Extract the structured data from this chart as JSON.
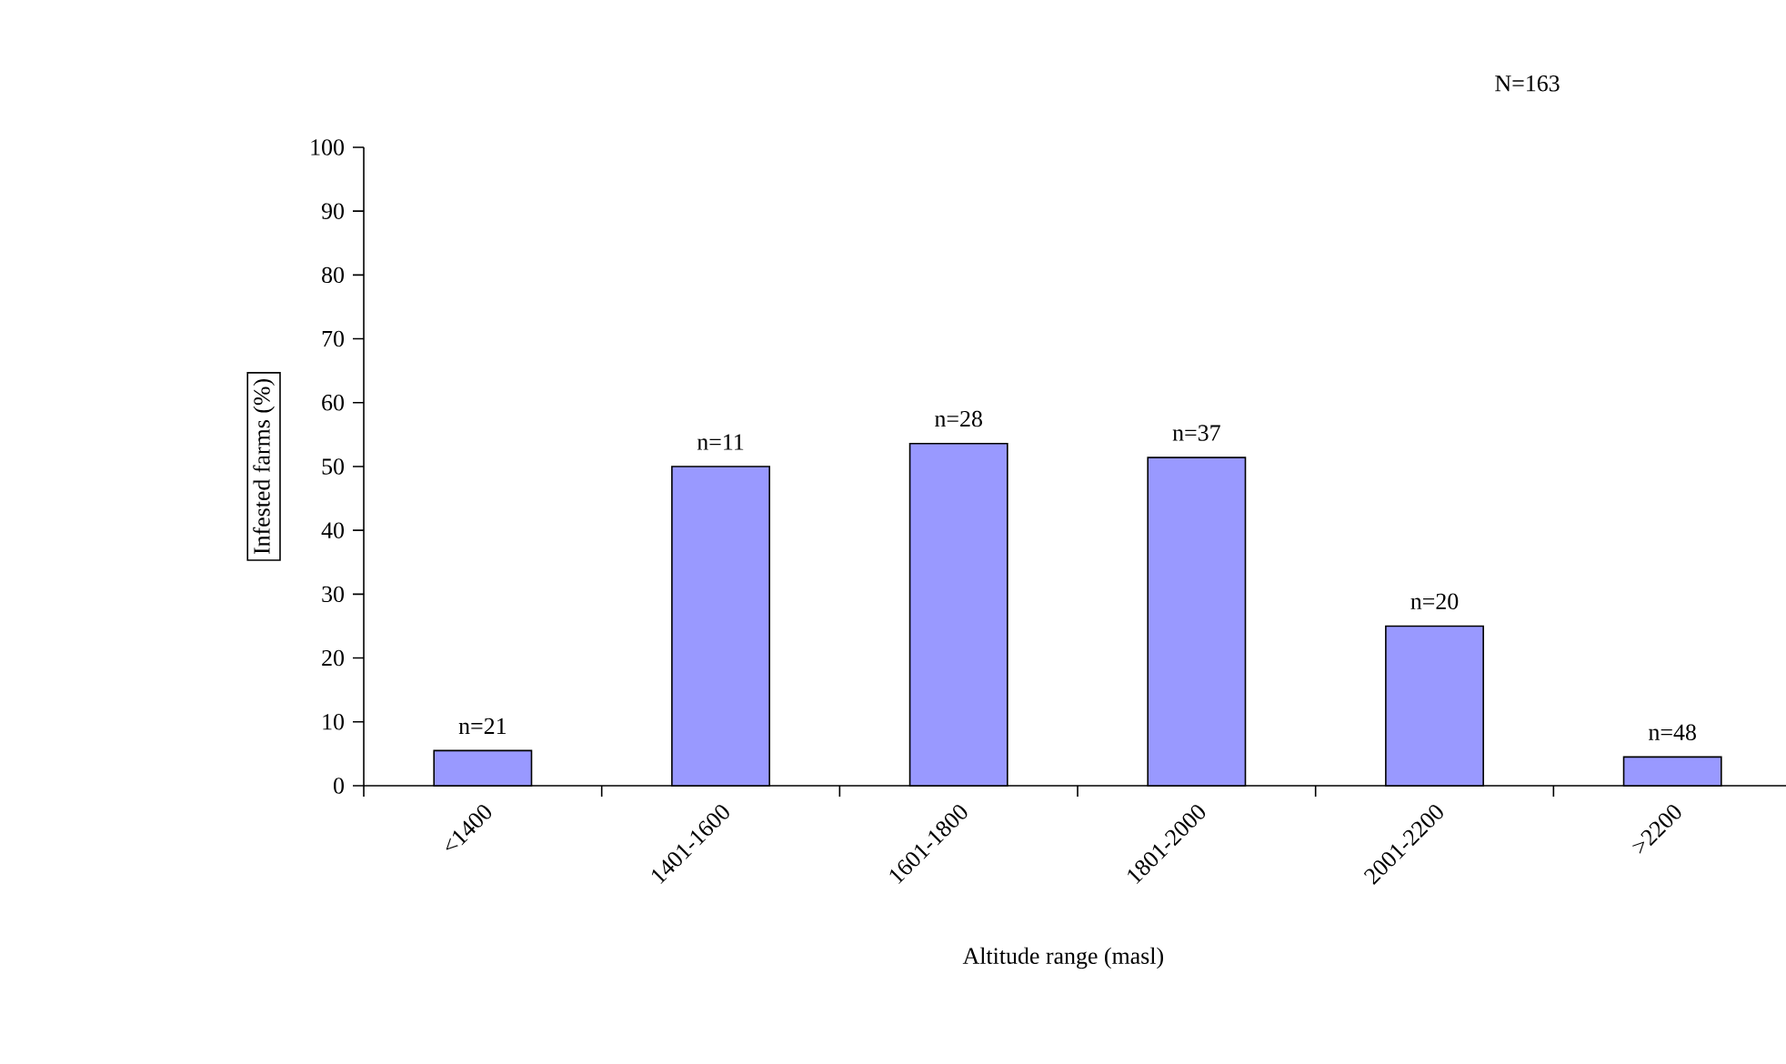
{
  "chart_data": {
    "type": "bar",
    "categories": [
      "<1400",
      "1401-1600",
      "1601-1800",
      "1801-2000",
      "2001-2200",
      ">2200"
    ],
    "values": [
      5.5,
      50,
      53.6,
      51.4,
      25,
      4.5
    ],
    "color": "#9999ff",
    "xlabel": "Altitude range (masl)",
    "ylabel": "Infested farms (%)",
    "ylim": [
      0,
      100
    ],
    "yticks": [
      0,
      10,
      20,
      30,
      40,
      50,
      60,
      70,
      80,
      90,
      100
    ],
    "grid": false,
    "annotations": [
      {
        "text": "n=21",
        "x": "<1400",
        "y": 5.5
      },
      {
        "text": "n=11",
        "x": "1401-1600",
        "y": 50
      },
      {
        "text": "n=28",
        "x": "1601-1800",
        "y": 53.6
      },
      {
        "text": "n=37",
        "x": "1801-2000",
        "y": 51.4
      },
      {
        "text": "n=20",
        "x": "2001-2200",
        "y": 25
      },
      {
        "text": "n=48",
        "x": ">2200",
        "y": 4.5
      },
      "N=163"
    ]
  }
}
